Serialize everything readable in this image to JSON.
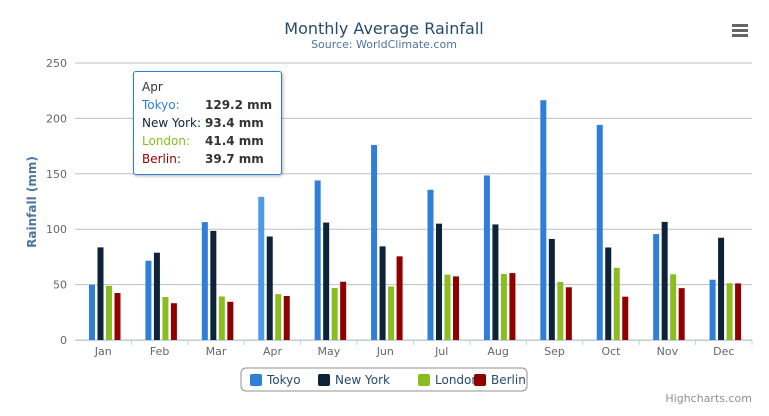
{
  "chart_data": {
    "type": "bar",
    "title": "Monthly Average Rainfall",
    "subtitle": "Source: WorldClimate.com",
    "xlabel": "",
    "ylabel": "Rainfall (mm)",
    "ylim": [
      0,
      250
    ],
    "yticks": [
      0,
      50,
      100,
      150,
      200,
      250
    ],
    "grid": true,
    "legend": "bottom-center",
    "categories": [
      "Jan",
      "Feb",
      "Mar",
      "Apr",
      "May",
      "Jun",
      "Jul",
      "Aug",
      "Sep",
      "Oct",
      "Nov",
      "Dec"
    ],
    "series": [
      {
        "name": "Tokyo",
        "color": "#2f7ed8",
        "values": [
          49.9,
          71.5,
          106.4,
          129.2,
          144.0,
          176.0,
          135.6,
          148.5,
          216.4,
          194.1,
          95.6,
          54.4
        ]
      },
      {
        "name": "New York",
        "color": "#0d233a",
        "values": [
          83.6,
          78.8,
          98.5,
          93.4,
          106.0,
          84.5,
          105.0,
          104.3,
          91.2,
          83.5,
          106.6,
          92.3
        ]
      },
      {
        "name": "London",
        "color": "#8bbc21",
        "values": [
          48.9,
          38.8,
          39.3,
          41.4,
          47.0,
          48.3,
          59.0,
          59.6,
          52.4,
          65.2,
          59.3,
          51.2
        ]
      },
      {
        "name": "Berlin",
        "color": "#910000",
        "values": [
          42.4,
          33.2,
          34.5,
          39.7,
          52.6,
          75.5,
          57.4,
          60.4,
          47.6,
          39.1,
          46.8,
          51.1
        ]
      }
    ]
  },
  "tooltip": {
    "header": "Apr",
    "rows": [
      {
        "label": "Tokyo:",
        "value": "129.2 mm",
        "color": "#2f7ed8"
      },
      {
        "label": "New York:",
        "value": "93.4 mm",
        "color": "#0d233a"
      },
      {
        "label": "London:",
        "value": "41.4 mm",
        "color": "#8bbc21"
      },
      {
        "label": "Berlin:",
        "value": "39.7 mm",
        "color": "#910000"
      }
    ]
  },
  "credits": "Highcharts.com",
  "menu_icon": "hamburger-menu-icon"
}
